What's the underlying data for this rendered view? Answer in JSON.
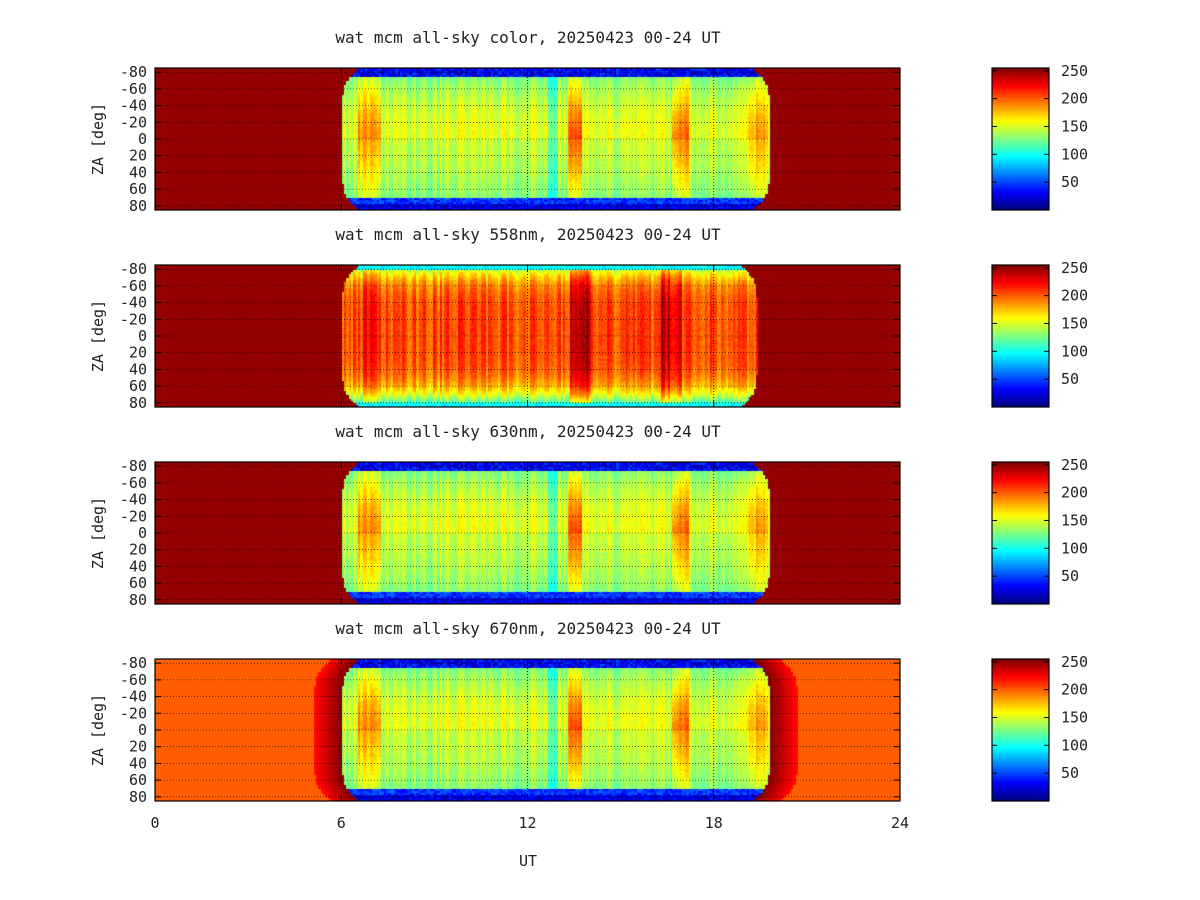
{
  "chart_data": [
    {
      "type": "heatmap",
      "title": "wat mcm all-sky color, 20250423 00-24 UT",
      "variant": "color",
      "ylabel": "ZA [deg]",
      "x_ticks": [
        "0",
        "6",
        "12",
        "18",
        "24"
      ],
      "y_ticks": [
        "-80",
        "-60",
        "-40",
        "-20",
        "0",
        "20",
        "40",
        "60",
        "80"
      ],
      "xlim": [
        0,
        24
      ],
      "ylim": [
        -85,
        85
      ],
      "colorbar": {
        "ticks": [
          "50",
          "100",
          "150",
          "200",
          "250"
        ],
        "range": [
          0,
          255
        ],
        "colormap": "jet"
      },
      "daytime_value": 250,
      "night_start_ut": 6.0,
      "night_end_ut": 19.8,
      "grid": true
    },
    {
      "type": "heatmap",
      "title": "wat mcm all-sky 558nm, 20250423 00-24 UT",
      "variant": "558",
      "ylabel": "ZA [deg]",
      "x_ticks": [
        "0",
        "6",
        "12",
        "18",
        "24"
      ],
      "y_ticks": [
        "-80",
        "-60",
        "-40",
        "-20",
        "0",
        "20",
        "40",
        "60",
        "80"
      ],
      "xlim": [
        0,
        24
      ],
      "ylim": [
        -85,
        85
      ],
      "colorbar": {
        "ticks": [
          "50",
          "100",
          "150",
          "200",
          "250"
        ],
        "range": [
          0,
          255
        ],
        "colormap": "jet"
      },
      "daytime_value": 250,
      "night_start_ut": 6.0,
      "night_end_ut": 19.4,
      "grid": true
    },
    {
      "type": "heatmap",
      "title": "wat mcm all-sky 630nm, 20250423 00-24 UT",
      "variant": "630",
      "ylabel": "ZA [deg]",
      "x_ticks": [
        "0",
        "6",
        "12",
        "18",
        "24"
      ],
      "y_ticks": [
        "-80",
        "-60",
        "-40",
        "-20",
        "0",
        "20",
        "40",
        "60",
        "80"
      ],
      "xlim": [
        0,
        24
      ],
      "ylim": [
        -85,
        85
      ],
      "colorbar": {
        "ticks": [
          "50",
          "100",
          "150",
          "200",
          "250"
        ],
        "range": [
          0,
          255
        ],
        "colormap": "jet"
      },
      "daytime_value": 250,
      "night_start_ut": 6.0,
      "night_end_ut": 19.8,
      "grid": true
    },
    {
      "type": "heatmap",
      "title": "wat mcm all-sky 670nm, 20250423 00-24 UT",
      "variant": "670",
      "xlabel": "UT",
      "ylabel": "ZA [deg]",
      "x_ticks": [
        "0",
        "6",
        "12",
        "18",
        "24"
      ],
      "y_ticks": [
        "-80",
        "-60",
        "-40",
        "-20",
        "0",
        "20",
        "40",
        "60",
        "80"
      ],
      "xlim": [
        0,
        24
      ],
      "ylim": [
        -85,
        85
      ],
      "colorbar": {
        "ticks": [
          "50",
          "100",
          "150",
          "200",
          "250"
        ],
        "range": [
          0,
          255
        ],
        "colormap": "jet"
      },
      "daytime_value": 200,
      "night_start_ut": 6.0,
      "night_end_ut": 19.8,
      "grid": true
    }
  ]
}
